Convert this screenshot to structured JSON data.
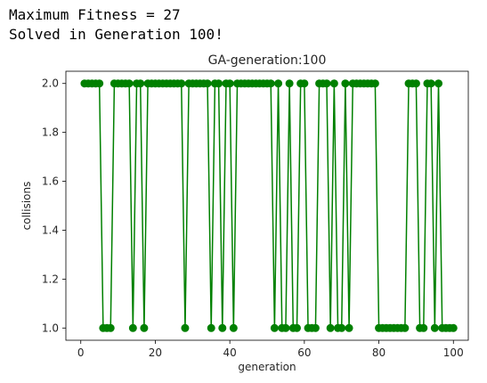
{
  "output": {
    "line1": "Maximum Fitness = 27",
    "line2": "Solved in Generation 100!"
  },
  "chart_data": {
    "type": "line",
    "title": "GA-generation:100",
    "xlabel": "generation",
    "ylabel": "collisions",
    "xlim": [
      -4,
      104
    ],
    "ylim": [
      0.95,
      2.05
    ],
    "xticks": [
      0,
      20,
      40,
      60,
      80,
      100
    ],
    "yticks": [
      1.0,
      1.2,
      1.4,
      1.6,
      1.8,
      2.0
    ],
    "xtick_labels": [
      "0",
      "20",
      "40",
      "60",
      "80",
      "100"
    ],
    "ytick_labels": [
      "1.0",
      "1.2",
      "1.4",
      "1.6",
      "1.8",
      "2.0"
    ],
    "grid": false,
    "series": [
      {
        "color": "#008000",
        "marker": "circle",
        "x": [
          1,
          2,
          3,
          4,
          5,
          6,
          7,
          8,
          9,
          10,
          11,
          12,
          13,
          14,
          15,
          16,
          17,
          18,
          19,
          20,
          21,
          22,
          23,
          24,
          25,
          26,
          27,
          28,
          29,
          30,
          31,
          32,
          33,
          34,
          35,
          36,
          37,
          38,
          39,
          40,
          41,
          42,
          43,
          44,
          45,
          46,
          47,
          48,
          49,
          50,
          51,
          52,
          53,
          54,
          55,
          56,
          57,
          58,
          59,
          60,
          61,
          62,
          63,
          64,
          65,
          66,
          67,
          68,
          69,
          70,
          71,
          72,
          73,
          74,
          75,
          76,
          77,
          78,
          79,
          80,
          81,
          82,
          83,
          84,
          85,
          86,
          87,
          88,
          89,
          90,
          91,
          92,
          93,
          94,
          95,
          96,
          97,
          98,
          99,
          100
        ],
        "y": [
          2,
          2,
          2,
          2,
          2,
          1,
          1,
          1,
          2,
          2,
          2,
          2,
          2,
          1,
          2,
          2,
          1,
          2,
          2,
          2,
          2,
          2,
          2,
          2,
          2,
          2,
          2,
          1,
          2,
          2,
          2,
          2,
          2,
          2,
          1,
          2,
          2,
          1,
          2,
          2,
          1,
          2,
          2,
          2,
          2,
          2,
          2,
          2,
          2,
          2,
          2,
          1,
          2,
          1,
          1,
          2,
          1,
          1,
          2,
          2,
          1,
          1,
          1,
          2,
          2,
          2,
          1,
          2,
          1,
          1,
          2,
          1,
          2,
          2,
          2,
          2,
          2,
          2,
          2,
          1,
          1,
          1,
          1,
          1,
          1,
          1,
          1,
          2,
          2,
          2,
          1,
          1,
          2,
          2,
          1,
          2,
          1,
          1,
          1,
          1
        ]
      }
    ]
  }
}
